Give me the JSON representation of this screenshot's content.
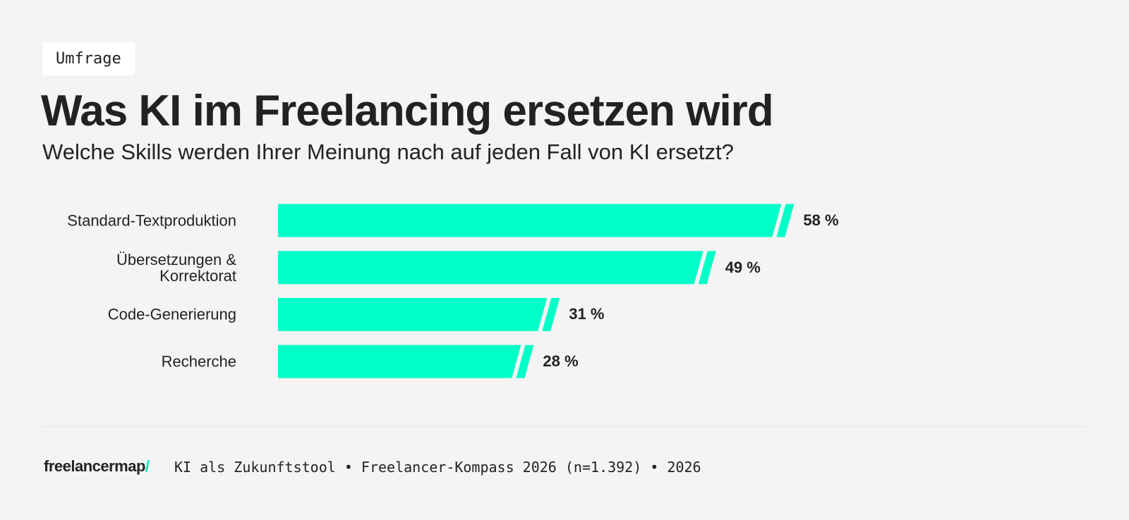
{
  "tag": "Umfrage",
  "chart_data": {
    "type": "bar",
    "orientation": "horizontal",
    "title": "Was KI im Freelancing ersetzen wird",
    "subtitle": "Welche Skills werden Ihrer Meinung nach auf jeden Fall von KI ersetzt?",
    "categories": [
      "Standard-Textproduktion",
      "Übersetzungen & Korrektorat",
      "Code-Generierung",
      "Recherche"
    ],
    "values": [
      58,
      49,
      31,
      28
    ],
    "value_labels": [
      "58 %",
      "49 %",
      "31 %",
      "28 %"
    ],
    "color": "#00ffc8"
  },
  "footer": {
    "logo": "freelancermap",
    "source": "KI als Zukunftstool • Freelancer-Kompass 2026 (n=1.392) • 2026"
  }
}
